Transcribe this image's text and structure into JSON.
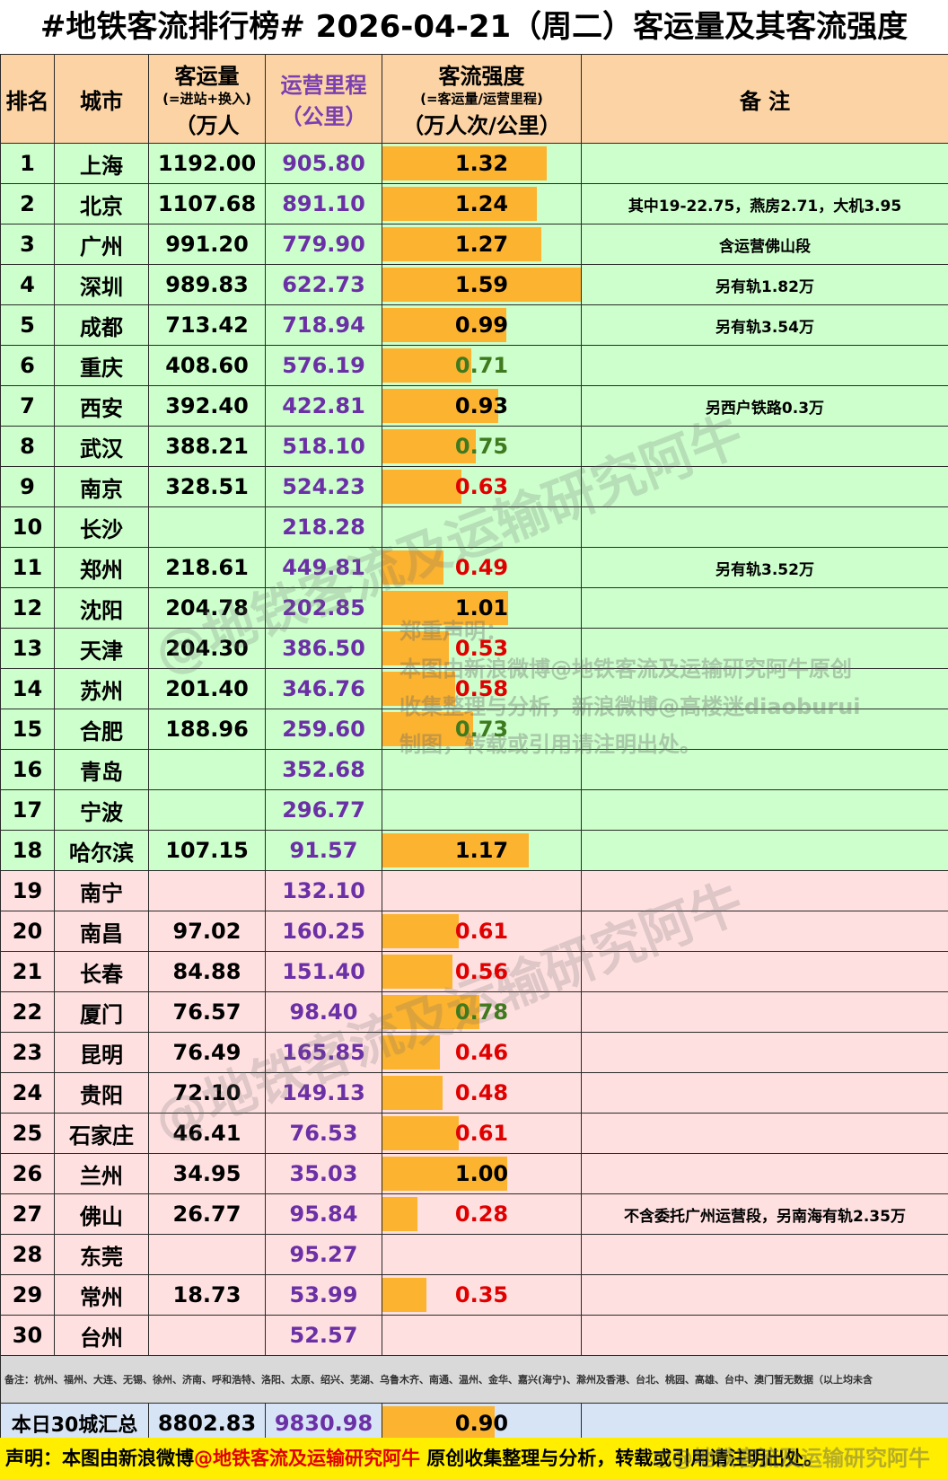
{
  "title": "#地铁客流排行榜# 2026-04-21（周二）客运量及其客流强度",
  "headers": {
    "rank": "排名",
    "city": "城市",
    "volume": [
      "客运量",
      "(=进站+换入)",
      "（万人"
    ],
    "mileage": [
      "运营里程",
      "（公里）"
    ],
    "intensity": [
      "客流强度",
      "(=客运量/运营里程)",
      "（万人次/公里）"
    ],
    "note": "备 注"
  },
  "rows": [
    {
      "rank": "1",
      "city": "上海",
      "volume": "1192.00",
      "mileage": "905.80",
      "intensity": "1.32",
      "note": ""
    },
    {
      "rank": "2",
      "city": "北京",
      "volume": "1107.68",
      "mileage": "891.10",
      "intensity": "1.24",
      "note": "其中19-22.75，燕房2.71，大机3.95"
    },
    {
      "rank": "3",
      "city": "广州",
      "volume": "991.20",
      "mileage": "779.90",
      "intensity": "1.27",
      "note": "含运营佛山段"
    },
    {
      "rank": "4",
      "city": "深圳",
      "volume": "989.83",
      "mileage": "622.73",
      "intensity": "1.59",
      "note": "另有轨1.82万"
    },
    {
      "rank": "5",
      "city": "成都",
      "volume": "713.42",
      "mileage": "718.94",
      "intensity": "0.99",
      "note": "另有轨3.54万"
    },
    {
      "rank": "6",
      "city": "重庆",
      "volume": "408.60",
      "mileage": "576.19",
      "intensity": "0.71",
      "note": ""
    },
    {
      "rank": "7",
      "city": "西安",
      "volume": "392.40",
      "mileage": "422.81",
      "intensity": "0.93",
      "note": "另西户铁路0.3万"
    },
    {
      "rank": "8",
      "city": "武汉",
      "volume": "388.21",
      "mileage": "518.10",
      "intensity": "0.75",
      "note": ""
    },
    {
      "rank": "9",
      "city": "南京",
      "volume": "328.51",
      "mileage": "524.23",
      "intensity": "0.63",
      "note": ""
    },
    {
      "rank": "10",
      "city": "长沙",
      "volume": "",
      "mileage": "218.28",
      "intensity": "",
      "note": ""
    },
    {
      "rank": "11",
      "city": "郑州",
      "volume": "218.61",
      "mileage": "449.81",
      "intensity": "0.49",
      "note": "另有轨3.52万"
    },
    {
      "rank": "12",
      "city": "沈阳",
      "volume": "204.78",
      "mileage": "202.85",
      "intensity": "1.01",
      "note": ""
    },
    {
      "rank": "13",
      "city": "天津",
      "volume": "204.30",
      "mileage": "386.50",
      "intensity": "0.53",
      "note": ""
    },
    {
      "rank": "14",
      "city": "苏州",
      "volume": "201.40",
      "mileage": "346.76",
      "intensity": "0.58",
      "note": ""
    },
    {
      "rank": "15",
      "city": "合肥",
      "volume": "188.96",
      "mileage": "259.60",
      "intensity": "0.73",
      "note": ""
    },
    {
      "rank": "16",
      "city": "青岛",
      "volume": "",
      "mileage": "352.68",
      "intensity": "",
      "note": ""
    },
    {
      "rank": "17",
      "city": "宁波",
      "volume": "",
      "mileage": "296.77",
      "intensity": "",
      "note": ""
    },
    {
      "rank": "18",
      "city": "哈尔滨",
      "volume": "107.15",
      "mileage": "91.57",
      "intensity": "1.17",
      "note": ""
    },
    {
      "rank": "19",
      "city": "南宁",
      "volume": "",
      "mileage": "132.10",
      "intensity": "",
      "note": ""
    },
    {
      "rank": "20",
      "city": "南昌",
      "volume": "97.02",
      "mileage": "160.25",
      "intensity": "0.61",
      "note": ""
    },
    {
      "rank": "21",
      "city": "长春",
      "volume": "84.88",
      "mileage": "151.40",
      "intensity": "0.56",
      "note": ""
    },
    {
      "rank": "22",
      "city": "厦门",
      "volume": "76.57",
      "mileage": "98.40",
      "intensity": "0.78",
      "note": ""
    },
    {
      "rank": "23",
      "city": "昆明",
      "volume": "76.49",
      "mileage": "165.85",
      "intensity": "0.46",
      "note": ""
    },
    {
      "rank": "24",
      "city": "贵阳",
      "volume": "72.10",
      "mileage": "149.13",
      "intensity": "0.48",
      "note": ""
    },
    {
      "rank": "25",
      "city": "石家庄",
      "volume": "46.41",
      "mileage": "76.53",
      "intensity": "0.61",
      "note": ""
    },
    {
      "rank": "26",
      "city": "兰州",
      "volume": "34.95",
      "mileage": "35.03",
      "intensity": "1.00",
      "note": ""
    },
    {
      "rank": "27",
      "city": "佛山",
      "volume": "26.77",
      "mileage": "95.84",
      "intensity": "0.28",
      "note": "不含委托广州运营段，另南海有轨2.35万"
    },
    {
      "rank": "28",
      "city": "东莞",
      "volume": "",
      "mileage": "95.27",
      "intensity": "",
      "note": ""
    },
    {
      "rank": "29",
      "city": "常州",
      "volume": "18.73",
      "mileage": "53.99",
      "intensity": "0.35",
      "note": ""
    },
    {
      "rank": "30",
      "city": "台州",
      "volume": "",
      "mileage": "52.57",
      "intensity": "",
      "note": ""
    }
  ],
  "footnote": "备注：杭州、福州、大连、无锡、徐州、济南、呼和浩特、洛阳、太原、绍兴、芜湖、乌鲁木齐、南通、温州、金华、嘉兴(海宁)、滁州及香港、台北、桃园、高雄、台中、澳门暂无数据（以上均未含",
  "summary": {
    "label": "本日30城汇总",
    "volume": "8802.83",
    "mileage": "9830.98",
    "intensity": "0.90"
  },
  "declaration": {
    "prefix": "声明：本图由新浪微博",
    "account": "@地铁客流及运输研究阿牛",
    "suffix": " 原创收集整理与分析，转载或引用请注明出处。"
  },
  "statement": [
    "郑重声明：",
    "本图由新浪微博@地铁客流及运输研究阿牛原创",
    "收集整理与分析，新浪微博@高楼迷diaoburui",
    "制图，转载或引用请注明出处。"
  ],
  "watermark": "@地铁客流及运输研究阿牛",
  "weibo_mark": "@地铁客流及运输研究阿牛",
  "colors": {
    "top18_bg": "#ccffcc",
    "rest_bg": "#ffe0e0",
    "bar": "#fbb330",
    "header_bg": "#fbd3a4",
    "summary_bg": "#d6e4f5",
    "low": "#e00000",
    "mid": "#3f7a1f",
    "high": "#000000"
  },
  "intensity_scale_max": 1.59
}
